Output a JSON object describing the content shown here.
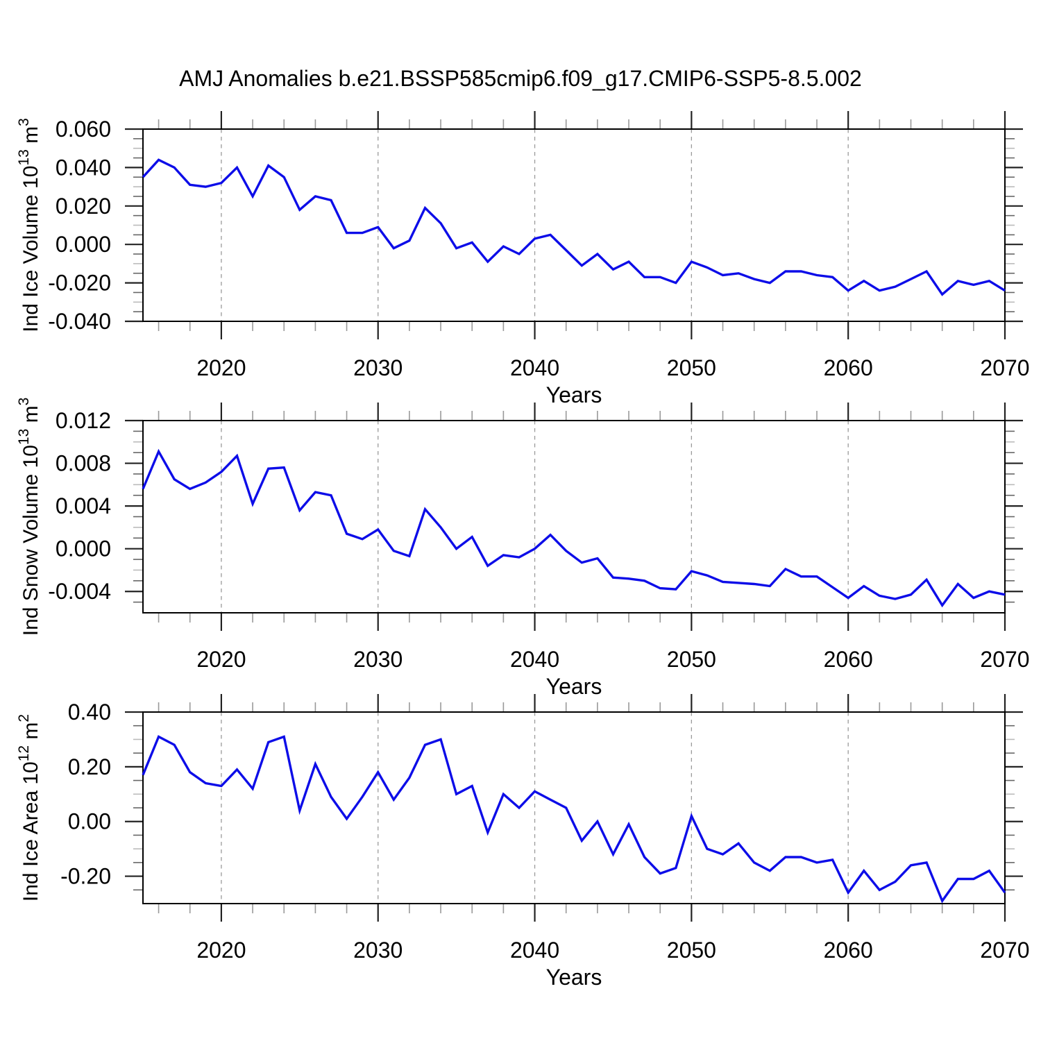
{
  "title": "AMJ Anomalies b.e21.BSSP585cmip6.f09_g17.CMIP6-SSP5-8.5.002",
  "colors": {
    "line": "#0d0de8",
    "grid": "#9a9a9a",
    "axis": "#000000",
    "tick_major": "#222222",
    "tick_minor_y": "#666666",
    "tick_minor_y_mid": "#bbbbbb",
    "tick_minor_x": "#999999",
    "text": "#000000"
  },
  "x_axis": {
    "label": "Years",
    "range": [
      2015,
      2070
    ],
    "major_ticks": [
      2020,
      2030,
      2040,
      2050,
      2060,
      2070
    ],
    "tick_labels": [
      "2020",
      "2030",
      "2040",
      "2050",
      "2060",
      "2070"
    ],
    "minor_step": 2
  },
  "chart_data": [
    {
      "type": "line",
      "panel": "ice-volume",
      "ylabel_plain": "Ind Ice Volume 10^13 m^3",
      "ylabel_segments": [
        {
          "t": "Ind Ice Volume 10"
        },
        {
          "t": "13",
          "sup": true
        },
        {
          "t": " m"
        },
        {
          "t": "3",
          "sup": true
        }
      ],
      "ylim": [
        -0.04,
        0.06
      ],
      "ytick_values": [
        0.06,
        0.04,
        0.02,
        0.0,
        -0.02,
        -0.04
      ],
      "ytick_labels": [
        "0.060",
        "0.040",
        "0.020",
        "0.000",
        "-0.020",
        "-0.040"
      ],
      "y_minor_step": 0.005,
      "x_start": 2015,
      "x_step": 1,
      "x_end": 2070,
      "values": [
        0.035,
        0.044,
        0.04,
        0.031,
        0.03,
        0.032,
        0.04,
        0.025,
        0.041,
        0.035,
        0.018,
        0.025,
        0.023,
        0.006,
        0.006,
        0.009,
        -0.002,
        0.002,
        0.019,
        0.011,
        -0.002,
        0.001,
        -0.009,
        -0.001,
        -0.005,
        0.003,
        0.005,
        -0.003,
        -0.011,
        -0.005,
        -0.013,
        -0.009,
        -0.017,
        -0.017,
        -0.02,
        -0.009,
        -0.012,
        -0.016,
        -0.015,
        -0.018,
        -0.02,
        -0.014,
        -0.014,
        -0.016,
        -0.017,
        -0.024,
        -0.019,
        -0.024,
        -0.022,
        -0.018,
        -0.014,
        -0.026,
        -0.019,
        -0.021,
        -0.019,
        -0.024
      ]
    },
    {
      "type": "line",
      "panel": "snow-volume",
      "ylabel_plain": "Ind Snow Volume 10^13 m^3",
      "ylabel_segments": [
        {
          "t": "Ind Snow Volume 10"
        },
        {
          "t": "13",
          "sup": true
        },
        {
          "t": " m"
        },
        {
          "t": "3",
          "sup": true
        }
      ],
      "ylim": [
        -0.006,
        0.012
      ],
      "ytick_values": [
        0.012,
        0.008,
        0.004,
        0.0,
        -0.004
      ],
      "ytick_labels": [
        "0.012",
        "0.008",
        "0.004",
        "0.000",
        "-0.004"
      ],
      "y_minor_step": 0.001,
      "x_start": 2015,
      "x_step": 1,
      "x_end": 2070,
      "values": [
        0.0056,
        0.0091,
        0.0065,
        0.0056,
        0.0062,
        0.0072,
        0.0087,
        0.0042,
        0.0075,
        0.0076,
        0.0036,
        0.0053,
        0.005,
        0.0014,
        0.0009,
        0.0018,
        -0.0002,
        -0.0007,
        0.0037,
        0.002,
        0.0,
        0.0011,
        -0.0016,
        -0.0006,
        -0.0008,
        0.0,
        0.0013,
        -0.0002,
        -0.0013,
        -0.0009,
        -0.0027,
        -0.0028,
        -0.003,
        -0.0037,
        -0.0038,
        -0.0021,
        -0.0025,
        -0.0031,
        -0.0032,
        -0.0033,
        -0.0035,
        -0.0019,
        -0.0026,
        -0.0026,
        -0.0036,
        -0.0046,
        -0.0035,
        -0.0044,
        -0.0047,
        -0.0043,
        -0.0029,
        -0.0053,
        -0.0033,
        -0.0046,
        -0.004,
        -0.0043
      ]
    },
    {
      "type": "line",
      "panel": "ice-area",
      "ylabel_plain": "Ind Ice Area 10^12 m^2",
      "ylabel_segments": [
        {
          "t": "Ind Ice Area 10"
        },
        {
          "t": "12",
          "sup": true
        },
        {
          "t": " m"
        },
        {
          "t": "2",
          "sup": true
        }
      ],
      "ylim": [
        -0.3,
        0.4
      ],
      "ytick_values": [
        0.4,
        0.2,
        0.0,
        -0.2
      ],
      "ytick_labels": [
        "0.40",
        "0.20",
        "0.00",
        "-0.20"
      ],
      "y_minor_step": 0.05,
      "x_start": 2015,
      "x_step": 1,
      "x_end": 2070,
      "values": [
        0.17,
        0.31,
        0.28,
        0.18,
        0.14,
        0.13,
        0.19,
        0.12,
        0.29,
        0.31,
        0.04,
        0.21,
        0.09,
        0.01,
        0.09,
        0.18,
        0.08,
        0.16,
        0.28,
        0.3,
        0.1,
        0.13,
        -0.04,
        0.1,
        0.05,
        0.11,
        0.08,
        0.05,
        -0.07,
        0.0,
        -0.12,
        -0.01,
        -0.13,
        -0.19,
        -0.17,
        0.02,
        -0.1,
        -0.12,
        -0.08,
        -0.15,
        -0.18,
        -0.13,
        -0.13,
        -0.15,
        -0.14,
        -0.26,
        -0.18,
        -0.25,
        -0.22,
        -0.16,
        -0.15,
        -0.29,
        -0.21,
        -0.21,
        -0.18,
        -0.26
      ]
    }
  ]
}
